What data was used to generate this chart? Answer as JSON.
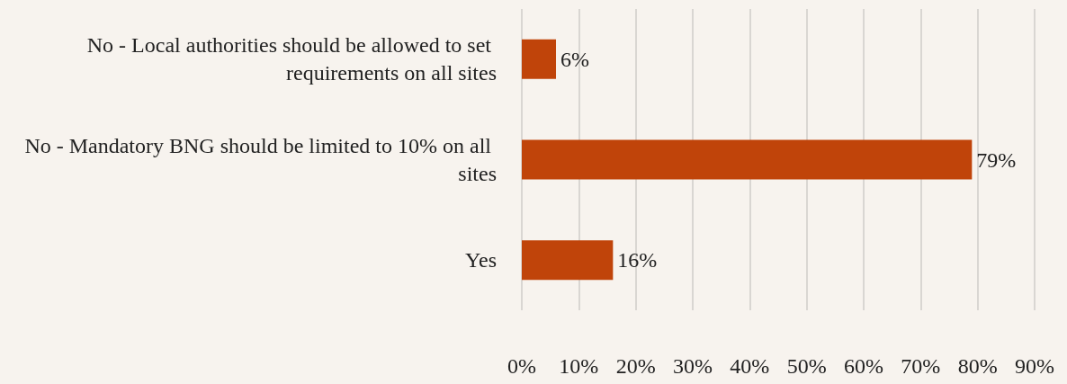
{
  "chart_data": {
    "type": "bar",
    "orientation": "horizontal",
    "categories": [
      "No - Local authorities should be allowed to set requirements on all sites",
      "No - Mandatory BNG should be limited to 10% on all sites",
      "Yes"
    ],
    "values": [
      6,
      79,
      16
    ],
    "color": "#c0440a",
    "value_labels": [
      "6%",
      "79%",
      "16%"
    ],
    "xlim": [
      0,
      90
    ],
    "xticks": [
      {
        "value": 0,
        "label": "0%"
      },
      {
        "value": 10,
        "label": "10%"
      },
      {
        "value": 20,
        "label": "20%"
      },
      {
        "value": 30,
        "label": "30%"
      },
      {
        "value": 40,
        "label": "40%"
      },
      {
        "value": 50,
        "label": "50%"
      },
      {
        "value": 60,
        "label": "60%"
      },
      {
        "value": 70,
        "label": "70%"
      },
      {
        "value": 80,
        "label": "80%"
      },
      {
        "value": 90,
        "label": "90%"
      }
    ],
    "grid": "x"
  }
}
